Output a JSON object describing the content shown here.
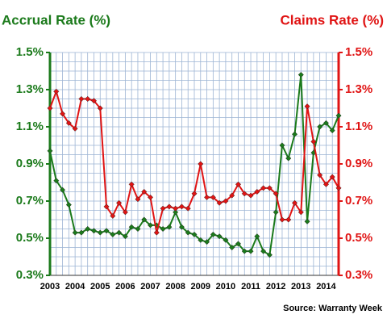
{
  "chart_data": {
    "type": "line",
    "title": "Accrual Rate (%)",
    "y2_title": "Claims Rate (%)",
    "source": "Source: Warranty Week",
    "x": [
      2003,
      2003.25,
      2003.5,
      2003.75,
      2004,
      2004.25,
      2004.5,
      2004.75,
      2005,
      2005.25,
      2005.5,
      2005.75,
      2006,
      2006.25,
      2006.5,
      2006.75,
      2007,
      2007.25,
      2007.5,
      2007.75,
      2008,
      2008.25,
      2008.5,
      2008.75,
      2009,
      2009.25,
      2009.5,
      2009.75,
      2010,
      2010.25,
      2010.5,
      2010.75,
      2011,
      2011.25,
      2011.5,
      2011.75,
      2012,
      2012.25,
      2012.5,
      2012.75,
      2013,
      2013.25,
      2013.5,
      2013.75,
      2014,
      2014.25,
      2014.5
    ],
    "series": [
      {
        "name": "Accrual Rate (%)",
        "color": "#1b7a1b",
        "values": [
          0.97,
          0.81,
          0.76,
          0.68,
          0.53,
          0.53,
          0.55,
          0.54,
          0.53,
          0.54,
          0.52,
          0.53,
          0.51,
          0.56,
          0.55,
          0.6,
          0.57,
          0.57,
          0.55,
          0.56,
          0.64,
          0.56,
          0.53,
          0.52,
          0.49,
          0.48,
          0.52,
          0.51,
          0.49,
          0.45,
          0.47,
          0.43,
          0.43,
          0.51,
          0.43,
          0.41,
          0.64,
          1.0,
          0.93,
          1.06,
          1.38,
          0.59,
          0.96,
          1.1,
          1.12,
          1.08,
          1.16
        ]
      },
      {
        "name": "Claims Rate (%)",
        "color": "#e01414",
        "axis": "y2",
        "values": [
          1.2,
          1.29,
          1.17,
          1.12,
          1.09,
          1.25,
          1.25,
          1.24,
          1.2,
          0.67,
          0.62,
          0.69,
          0.64,
          0.79,
          0.71,
          0.75,
          0.72,
          0.53,
          0.66,
          0.67,
          0.66,
          0.67,
          0.66,
          0.74,
          0.9,
          0.72,
          0.72,
          0.69,
          0.7,
          0.73,
          0.79,
          0.74,
          0.73,
          0.75,
          0.77,
          0.77,
          0.74,
          0.6,
          0.6,
          0.69,
          0.64,
          1.21,
          1.02,
          0.84,
          0.79,
          0.83,
          0.77
        ]
      }
    ],
    "xlim": [
      2003,
      2014.5
    ],
    "xticks": [
      2003,
      2004,
      2005,
      2006,
      2007,
      2008,
      2009,
      2010,
      2011,
      2012,
      2013,
      2014
    ],
    "ylim": [
      0.3,
      1.5
    ],
    "yticks": [
      {
        "value": 0.3,
        "label": "0.3%"
      },
      {
        "value": 0.5,
        "label": "0.5%"
      },
      {
        "value": 0.7,
        "label": "0.7%"
      },
      {
        "value": 0.9,
        "label": "0.9%"
      },
      {
        "value": 1.1,
        "label": "1.1%"
      },
      {
        "value": 1.3,
        "label": "1.3%"
      },
      {
        "value": 1.5,
        "label": "1.5%"
      }
    ],
    "y2lim": [
      0.3,
      1.5
    ],
    "y2ticks": [
      {
        "value": 0.3,
        "label": "0.3%"
      },
      {
        "value": 0.5,
        "label": "0.5%"
      },
      {
        "value": 0.7,
        "label": "0.7%"
      },
      {
        "value": 0.9,
        "label": "0.9%"
      },
      {
        "value": 1.1,
        "label": "1.1%"
      },
      {
        "value": 1.3,
        "label": "1.3%"
      },
      {
        "value": 1.5,
        "label": "1.5%"
      }
    ],
    "grid": true
  }
}
